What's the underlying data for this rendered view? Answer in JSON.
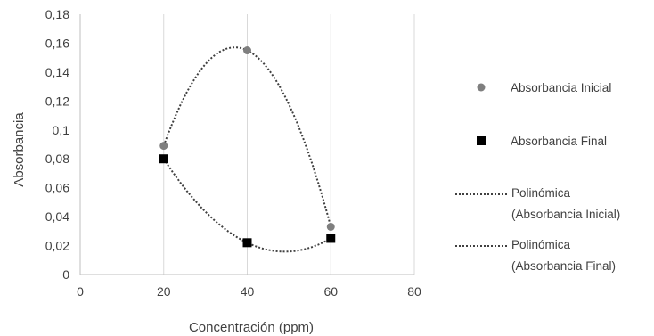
{
  "chart_data": {
    "type": "scatter",
    "xlabel": "Concentración (ppm)",
    "ylabel": "Absorbancia",
    "xlim": [
      0,
      80
    ],
    "ylim": [
      0,
      0.18
    ],
    "x_ticks": [
      "0",
      "20",
      "40",
      "60",
      "80"
    ],
    "y_ticks": [
      "0",
      "0,02",
      "0,04",
      "0,06",
      "0,08",
      "0,1",
      "0,12",
      "0,14",
      "0,16",
      "0,18"
    ],
    "grid": "vertical",
    "legend_position": "right",
    "series": [
      {
        "name": "Absorbancia Inicial",
        "marker": "circle",
        "color": "#7f7f7f",
        "x": [
          20,
          40,
          60
        ],
        "y": [
          0.089,
          0.155,
          0.033
        ]
      },
      {
        "name": "Absorbancia Final",
        "marker": "square",
        "color": "#000000",
        "x": [
          20,
          40,
          60
        ],
        "y": [
          0.08,
          0.022,
          0.025
        ]
      }
    ],
    "trendlines": [
      {
        "label": [
          "Polinómica",
          "(Absorbancia Inicial)"
        ],
        "of_series": 0,
        "style": "dotted",
        "color": "#404040"
      },
      {
        "label": [
          "Polinómica",
          "(Absorbancia Final)"
        ],
        "of_series": 1,
        "style": "dotted",
        "color": "#404040"
      }
    ]
  }
}
